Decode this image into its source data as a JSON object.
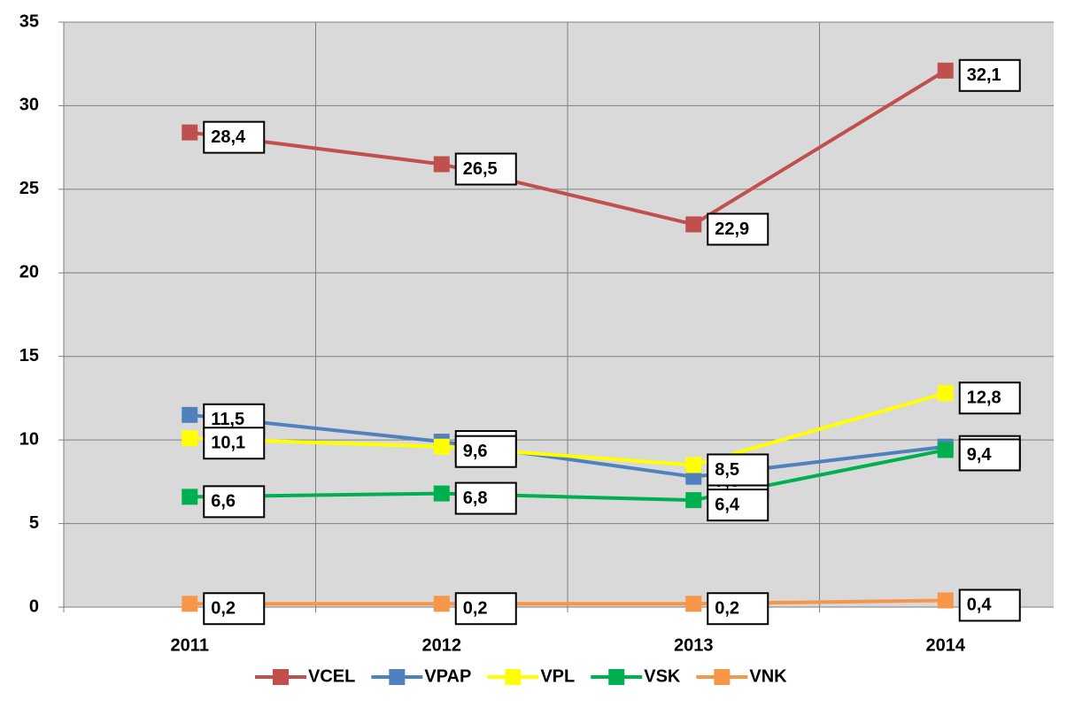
{
  "chart_data": {
    "type": "line",
    "categories": [
      "2011",
      "2012",
      "2013",
      "2014"
    ],
    "series": [
      {
        "name": "VCEL",
        "color": "#c0504d",
        "values": [
          28.4,
          26.5,
          22.9,
          32.1
        ],
        "value_labels": [
          "28,4",
          "26,5",
          "22,9",
          "32,1"
        ]
      },
      {
        "name": "VPAP",
        "color": "#4f81bd",
        "values": [
          11.5,
          9.9,
          7.8,
          9.6
        ],
        "value_labels": [
          "11,5",
          "9,9",
          "7,8",
          "9,6"
        ]
      },
      {
        "name": "VPL",
        "color": "#ffff00",
        "values": [
          10.1,
          9.6,
          8.5,
          12.8
        ],
        "value_labels": [
          "10,1",
          "9,6",
          "8,5",
          "12,8"
        ]
      },
      {
        "name": "VSK",
        "color": "#00b050",
        "values": [
          6.6,
          6.8,
          6.4,
          9.4
        ],
        "value_labels": [
          "6,6",
          "6,8",
          "6,4",
          "9,4"
        ]
      },
      {
        "name": "VNK",
        "color": "#f79646",
        "values": [
          0.2,
          0.2,
          0.2,
          0.4
        ],
        "value_labels": [
          "0,2",
          "0,2",
          "0,2",
          "0,4"
        ]
      }
    ],
    "ylim": [
      0,
      35
    ],
    "yticks": [
      0,
      5,
      10,
      15,
      20,
      25,
      30,
      35
    ],
    "grid": true,
    "legend": "bottom"
  }
}
